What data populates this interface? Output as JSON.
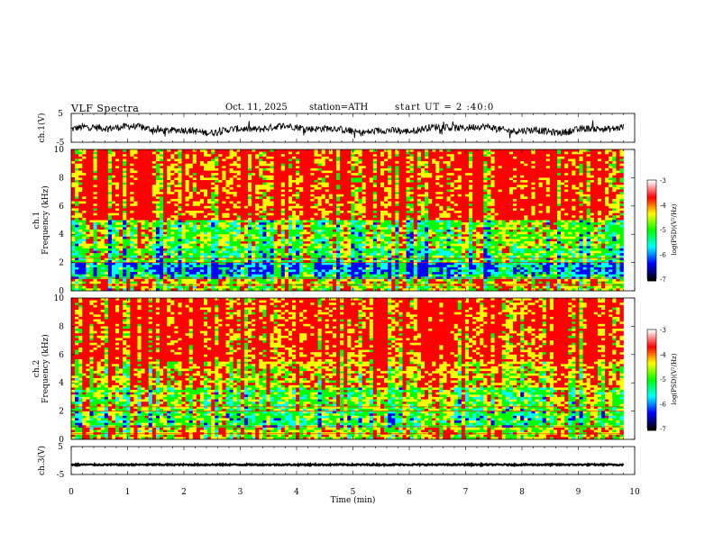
{
  "header": {
    "title": "VLF  Spectra",
    "date": "Oct. 11, 2025",
    "station": "station=ATH",
    "start_ut": "start UT =  2 :40:0"
  },
  "colors": {
    "colormap": [
      "#000000",
      "#0000ff",
      "#00ffff",
      "#00ff00",
      "#ffff00",
      "#ff0000",
      "#ffffff"
    ],
    "waveform": "#000000"
  },
  "chart_data": [
    {
      "type": "line",
      "panel": "ch1-waveform",
      "ylabel": "ch.1(V)",
      "ylim": [
        -5,
        5
      ],
      "yticks": [
        "5",
        "-5"
      ],
      "x_range_min": [
        0,
        9.8
      ],
      "description_values": {
        "mean": -0.5,
        "amplitude_typical": 1.5
      }
    },
    {
      "type": "heatmap",
      "panel": "ch1-spectrogram",
      "ylabel": "ch.1\nFrequency (kHz)",
      "ylim": [
        0,
        10
      ],
      "yticks": [
        "0",
        "2",
        "4",
        "6",
        "8",
        "10"
      ],
      "colorbar": {
        "label": "log(PSD)(V²/Hz)",
        "ticks": [
          "-3",
          "-4",
          "-5",
          "-6",
          "-7"
        ],
        "range": [
          -7,
          -3
        ]
      }
    },
    {
      "type": "heatmap",
      "panel": "ch2-spectrogram",
      "ylabel": "ch.2\nFrequency (kHz)",
      "ylim": [
        0,
        10
      ],
      "yticks": [
        "0",
        "2",
        "4",
        "6",
        "8",
        "10"
      ],
      "colorbar": {
        "label": "log(PSD)(V²/Hz)",
        "ticks": [
          "-3",
          "-4",
          "-5",
          "-6",
          "-7"
        ],
        "range": [
          -7,
          -3
        ]
      }
    },
    {
      "type": "line",
      "panel": "ch3-waveform",
      "ylabel": "ch.3(V)",
      "ylim": [
        -5,
        5
      ],
      "yticks": [
        "5",
        "-5"
      ],
      "description_values": {
        "mean": -1.5
      }
    }
  ],
  "x_axis": {
    "label": "Time  (min)",
    "ticks": [
      "0",
      "1",
      "2",
      "3",
      "4",
      "5",
      "6",
      "7",
      "8",
      "9",
      "10"
    ],
    "range": [
      0,
      10
    ],
    "data_end": 9.8
  }
}
